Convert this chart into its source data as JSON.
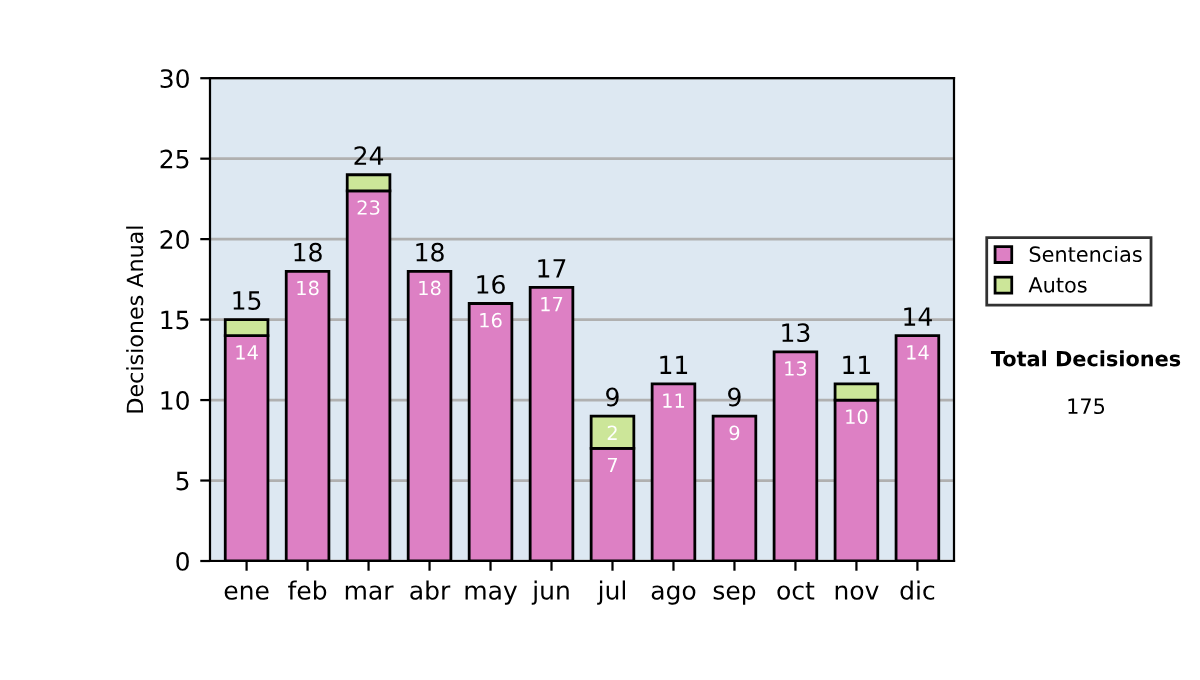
{
  "chart_data": {
    "type": "bar",
    "ylabel": "Decisiones Anual",
    "stacked": true,
    "categories": [
      "ene",
      "feb",
      "mar",
      "abr",
      "may",
      "jun",
      "jul",
      "ago",
      "sep",
      "oct",
      "nov",
      "dic"
    ],
    "series": [
      {
        "name": "Sentencias",
        "color": "#dd80c4",
        "values": [
          14,
          18,
          23,
          18,
          16,
          17,
          7,
          11,
          9,
          13,
          10,
          14
        ],
        "value_labels": [
          "14",
          "18",
          "23",
          "18",
          "16",
          "17",
          "7",
          "11",
          "9",
          "13",
          "10",
          "14"
        ]
      },
      {
        "name": "Autos",
        "color": "#cce699",
        "values": [
          1,
          null,
          1,
          null,
          null,
          null,
          2,
          null,
          null,
          null,
          1,
          null
        ],
        "value_labels": [
          null,
          null,
          null,
          null,
          null,
          null,
          "2",
          null,
          null,
          null,
          null,
          null
        ]
      }
    ],
    "totals": [
      "15",
      "18",
      "24",
      "18",
      "16",
      "17",
      "9",
      "11",
      "9",
      "13",
      "11",
      "14"
    ],
    "ylim": [
      0,
      30
    ],
    "yticks": [
      0,
      5,
      10,
      15,
      20,
      25,
      30
    ],
    "grid": "y",
    "legend": "right",
    "annotations": [
      "Total Decisiones",
      "175"
    ]
  }
}
